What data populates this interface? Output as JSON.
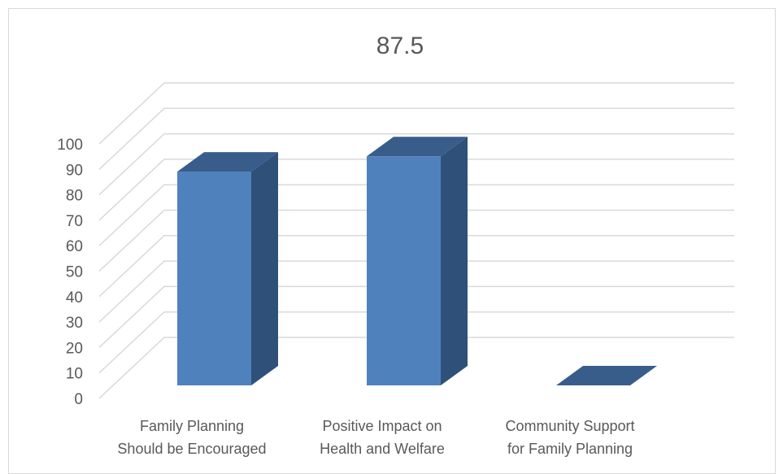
{
  "chart_data": {
    "type": "bar",
    "title": "87.5",
    "categories": [
      [
        "Family Planning",
        "Should be Encouraged"
      ],
      [
        "Positive Impact on",
        "Health and Welfare"
      ],
      [
        "Community Support",
        "for Family Planning"
      ]
    ],
    "values": [
      84,
      90,
      0
    ],
    "ylim": [
      0,
      100
    ],
    "yticks": [
      0,
      10,
      20,
      30,
      40,
      50,
      60,
      70,
      80,
      90,
      100
    ],
    "grid": true,
    "colors": {
      "front": "#4f81bd",
      "top": "#385d8a",
      "side": "#2f5079"
    }
  }
}
